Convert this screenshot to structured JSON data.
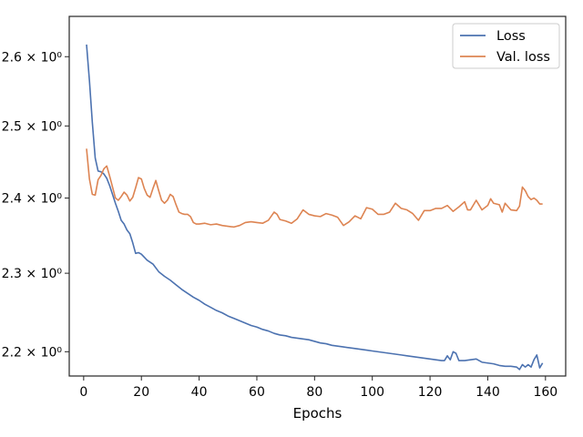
{
  "chart_data": {
    "type": "line",
    "title": "",
    "xlabel": "Epochs",
    "ylabel": "",
    "yscale": "log",
    "xlim": [
      -5,
      167
    ],
    "ylim": [
      2.17,
      2.66
    ],
    "grid": false,
    "legend_position": "top-right",
    "x_ticks": [
      {
        "value": 0,
        "label": "0"
      },
      {
        "value": 20,
        "label": "20"
      },
      {
        "value": 40,
        "label": "40"
      },
      {
        "value": 60,
        "label": "60"
      },
      {
        "value": 80,
        "label": "80"
      },
      {
        "value": 100,
        "label": "100"
      },
      {
        "value": 120,
        "label": "120"
      },
      {
        "value": 140,
        "label": "140"
      },
      {
        "value": 160,
        "label": "160"
      }
    ],
    "y_ticks": [
      {
        "value": 2.2,
        "label": "2.2 × 10⁰"
      },
      {
        "value": 2.3,
        "label": "2.3 × 10⁰"
      },
      {
        "value": 2.4,
        "label": "2.4 × 10⁰"
      },
      {
        "value": 2.5,
        "label": "2.5 × 10⁰"
      },
      {
        "value": 2.6,
        "label": "2.6 × 10⁰"
      }
    ],
    "series": [
      {
        "name": "Loss",
        "color": "#4c72b0",
        "points": [
          [
            1,
            2.618
          ],
          [
            2,
            2.565
          ],
          [
            3,
            2.505
          ],
          [
            4,
            2.455
          ],
          [
            5,
            2.437
          ],
          [
            6,
            2.436
          ],
          [
            7,
            2.433
          ],
          [
            8,
            2.427
          ],
          [
            9,
            2.417
          ],
          [
            10,
            2.405
          ],
          [
            11,
            2.393
          ],
          [
            12,
            2.382
          ],
          [
            13,
            2.37
          ],
          [
            14,
            2.365
          ],
          [
            15,
            2.357
          ],
          [
            16,
            2.352
          ],
          [
            17,
            2.34
          ],
          [
            18,
            2.326
          ],
          [
            19,
            2.327
          ],
          [
            20,
            2.325
          ],
          [
            22,
            2.317
          ],
          [
            24,
            2.312
          ],
          [
            26,
            2.302
          ],
          [
            28,
            2.296
          ],
          [
            30,
            2.291
          ],
          [
            32,
            2.285
          ],
          [
            34,
            2.279
          ],
          [
            36,
            2.274
          ],
          [
            38,
            2.269
          ],
          [
            40,
            2.265
          ],
          [
            42,
            2.26
          ],
          [
            44,
            2.256
          ],
          [
            46,
            2.252
          ],
          [
            48,
            2.249
          ],
          [
            50,
            2.245
          ],
          [
            52,
            2.242
          ],
          [
            54,
            2.239
          ],
          [
            56,
            2.236
          ],
          [
            58,
            2.233
          ],
          [
            60,
            2.231
          ],
          [
            62,
            2.228
          ],
          [
            64,
            2.226
          ],
          [
            66,
            2.223
          ],
          [
            68,
            2.221
          ],
          [
            70,
            2.22
          ],
          [
            72,
            2.218
          ],
          [
            74,
            2.217
          ],
          [
            76,
            2.216
          ],
          [
            78,
            2.215
          ],
          [
            80,
            2.213
          ],
          [
            82,
            2.211
          ],
          [
            84,
            2.21
          ],
          [
            86,
            2.208
          ],
          [
            88,
            2.207
          ],
          [
            90,
            2.206
          ],
          [
            92,
            2.205
          ],
          [
            94,
            2.204
          ],
          [
            96,
            2.203
          ],
          [
            98,
            2.202
          ],
          [
            100,
            2.201
          ],
          [
            102,
            2.2
          ],
          [
            104,
            2.199
          ],
          [
            106,
            2.198
          ],
          [
            108,
            2.197
          ],
          [
            110,
            2.196
          ],
          [
            112,
            2.195
          ],
          [
            114,
            2.194
          ],
          [
            116,
            2.193
          ],
          [
            118,
            2.192
          ],
          [
            120,
            2.191
          ],
          [
            122,
            2.19
          ],
          [
            124,
            2.189
          ],
          [
            125,
            2.189
          ],
          [
            126,
            2.195
          ],
          [
            127,
            2.19
          ],
          [
            128,
            2.2
          ],
          [
            129,
            2.198
          ],
          [
            130,
            2.189
          ],
          [
            132,
            2.189
          ],
          [
            134,
            2.19
          ],
          [
            136,
            2.191
          ],
          [
            138,
            2.187
          ],
          [
            140,
            2.186
          ],
          [
            142,
            2.185
          ],
          [
            144,
            2.183
          ],
          [
            146,
            2.182
          ],
          [
            148,
            2.182
          ],
          [
            150,
            2.181
          ],
          [
            151,
            2.178
          ],
          [
            152,
            2.184
          ],
          [
            153,
            2.181
          ],
          [
            154,
            2.184
          ],
          [
            155,
            2.181
          ],
          [
            156,
            2.19
          ],
          [
            157,
            2.196
          ],
          [
            158,
            2.18
          ],
          [
            159,
            2.186
          ]
        ]
      },
      {
        "name": "Val. loss",
        "color": "#dd8452",
        "points": [
          [
            1,
            2.468
          ],
          [
            2,
            2.426
          ],
          [
            3,
            2.405
          ],
          [
            4,
            2.404
          ],
          [
            5,
            2.425
          ],
          [
            6,
            2.431
          ],
          [
            7,
            2.44
          ],
          [
            8,
            2.444
          ],
          [
            9,
            2.43
          ],
          [
            10,
            2.415
          ],
          [
            11,
            2.4
          ],
          [
            12,
            2.397
          ],
          [
            13,
            2.402
          ],
          [
            14,
            2.408
          ],
          [
            15,
            2.404
          ],
          [
            16,
            2.396
          ],
          [
            17,
            2.401
          ],
          [
            18,
            2.414
          ],
          [
            19,
            2.428
          ],
          [
            20,
            2.426
          ],
          [
            21,
            2.413
          ],
          [
            22,
            2.404
          ],
          [
            23,
            2.401
          ],
          [
            24,
            2.413
          ],
          [
            25,
            2.424
          ],
          [
            26,
            2.41
          ],
          [
            27,
            2.397
          ],
          [
            28,
            2.393
          ],
          [
            29,
            2.397
          ],
          [
            30,
            2.405
          ],
          [
            31,
            2.402
          ],
          [
            32,
            2.391
          ],
          [
            33,
            2.381
          ],
          [
            34,
            2.379
          ],
          [
            35,
            2.378
          ],
          [
            36,
            2.378
          ],
          [
            37,
            2.375
          ],
          [
            38,
            2.367
          ],
          [
            39,
            2.365
          ],
          [
            40,
            2.365
          ],
          [
            42,
            2.366
          ],
          [
            44,
            2.364
          ],
          [
            46,
            2.365
          ],
          [
            48,
            2.363
          ],
          [
            50,
            2.362
          ],
          [
            52,
            2.361
          ],
          [
            54,
            2.363
          ],
          [
            56,
            2.367
          ],
          [
            58,
            2.368
          ],
          [
            60,
            2.367
          ],
          [
            62,
            2.366
          ],
          [
            64,
            2.37
          ],
          [
            66,
            2.381
          ],
          [
            67,
            2.378
          ],
          [
            68,
            2.371
          ],
          [
            70,
            2.369
          ],
          [
            72,
            2.366
          ],
          [
            74,
            2.372
          ],
          [
            76,
            2.384
          ],
          [
            78,
            2.378
          ],
          [
            80,
            2.376
          ],
          [
            82,
            2.375
          ],
          [
            84,
            2.379
          ],
          [
            86,
            2.377
          ],
          [
            88,
            2.374
          ],
          [
            90,
            2.363
          ],
          [
            92,
            2.368
          ],
          [
            94,
            2.376
          ],
          [
            96,
            2.372
          ],
          [
            98,
            2.387
          ],
          [
            100,
            2.385
          ],
          [
            102,
            2.378
          ],
          [
            104,
            2.378
          ],
          [
            106,
            2.381
          ],
          [
            108,
            2.393
          ],
          [
            110,
            2.386
          ],
          [
            112,
            2.384
          ],
          [
            114,
            2.379
          ],
          [
            116,
            2.37
          ],
          [
            118,
            2.383
          ],
          [
            120,
            2.383
          ],
          [
            122,
            2.386
          ],
          [
            124,
            2.386
          ],
          [
            126,
            2.39
          ],
          [
            128,
            2.382
          ],
          [
            130,
            2.388
          ],
          [
            132,
            2.395
          ],
          [
            133,
            2.384
          ],
          [
            134,
            2.384
          ],
          [
            136,
            2.397
          ],
          [
            138,
            2.384
          ],
          [
            140,
            2.39
          ],
          [
            141,
            2.399
          ],
          [
            142,
            2.393
          ],
          [
            144,
            2.391
          ],
          [
            145,
            2.381
          ],
          [
            146,
            2.393
          ],
          [
            148,
            2.384
          ],
          [
            150,
            2.383
          ],
          [
            151,
            2.389
          ],
          [
            152,
            2.415
          ],
          [
            153,
            2.41
          ],
          [
            154,
            2.402
          ],
          [
            155,
            2.398
          ],
          [
            156,
            2.4
          ],
          [
            157,
            2.397
          ],
          [
            158,
            2.392
          ],
          [
            159,
            2.392
          ]
        ]
      }
    ]
  }
}
